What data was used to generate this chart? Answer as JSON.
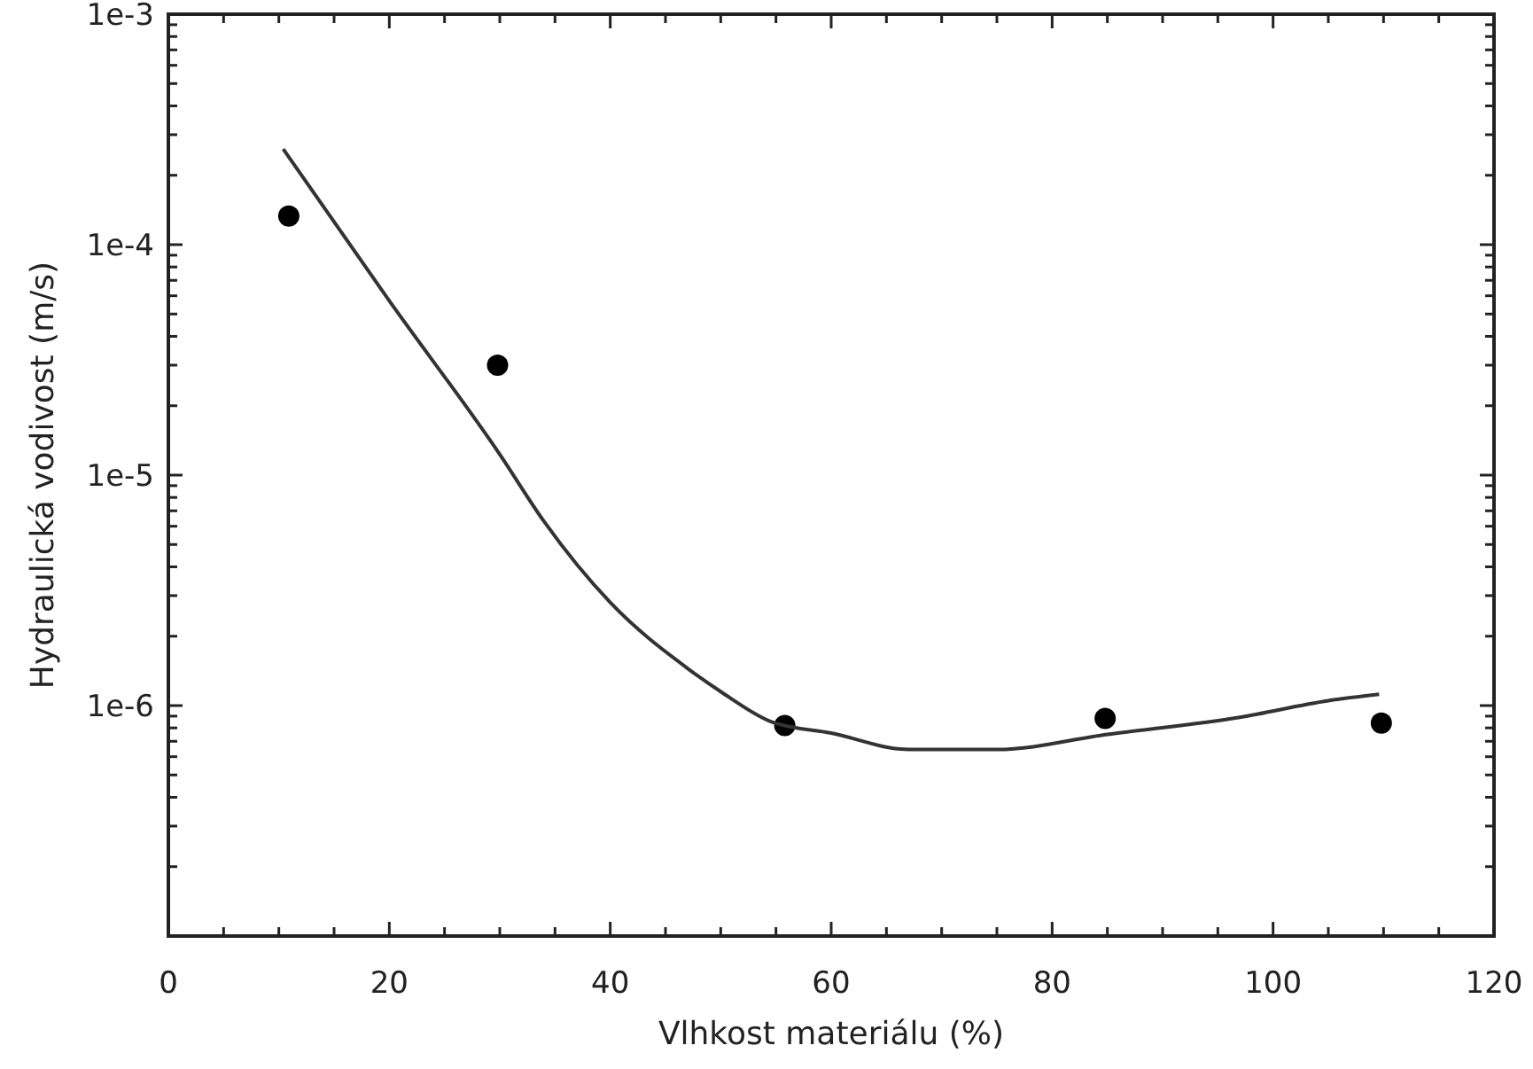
{
  "chart_data": {
    "type": "scatter",
    "xlabel": "Vlhkost materiálu (%)",
    "ylabel": "Hydraulická vodivost (m/s)",
    "log": "y",
    "grid": false,
    "xlim": [
      0,
      120
    ],
    "xticks": [
      0,
      {
        "value": 5,
        "label": null
      },
      {
        "value": 10,
        "label": null
      },
      {
        "value": 15,
        "label": null
      },
      20,
      {
        "value": 25,
        "label": null
      },
      {
        "value": 30,
        "label": null
      },
      {
        "value": 35,
        "label": null
      },
      40,
      {
        "value": 45,
        "label": null
      },
      {
        "value": 50,
        "label": null
      },
      {
        "value": 55,
        "label": null
      },
      60,
      {
        "value": 65,
        "label": null
      },
      {
        "value": 70,
        "label": null
      },
      {
        "value": 75,
        "label": null
      },
      80,
      {
        "value": 85,
        "label": null
      },
      {
        "value": 90,
        "label": null
      },
      {
        "value": 95,
        "label": null
      },
      100,
      {
        "value": 105,
        "label": null
      },
      {
        "value": 110,
        "label": null
      },
      {
        "value": 115,
        "label": null
      },
      120
    ],
    "ylim": [
      1e-07,
      0.001
    ],
    "yticks": [
      {
        "value": 1e-07,
        "label": null
      },
      {
        "value": 2e-07,
        "label": null
      },
      {
        "value": 3e-07,
        "label": null
      },
      {
        "value": 4e-07,
        "label": null
      },
      {
        "value": 5e-07,
        "label": null
      },
      {
        "value": 6e-07,
        "label": null
      },
      {
        "value": 7e-07,
        "label": null
      },
      {
        "value": 8e-07,
        "label": null
      },
      {
        "value": 9e-07,
        "label": null
      },
      {
        "value": 1e-06,
        "label": "1e-6"
      },
      {
        "value": 2e-06,
        "label": null
      },
      {
        "value": 3e-06,
        "label": null
      },
      {
        "value": 4e-06,
        "label": null
      },
      {
        "value": 5e-06,
        "label": null
      },
      {
        "value": 6e-06,
        "label": null
      },
      {
        "value": 7e-06,
        "label": null
      },
      {
        "value": 8e-06,
        "label": null
      },
      {
        "value": 9e-06,
        "label": null
      },
      {
        "value": 1e-05,
        "label": "1e-5"
      },
      {
        "value": 2e-05,
        "label": null
      },
      {
        "value": 3e-05,
        "label": null
      },
      {
        "value": 4e-05,
        "label": null
      },
      {
        "value": 5e-05,
        "label": null
      },
      {
        "value": 6e-05,
        "label": null
      },
      {
        "value": 7e-05,
        "label": null
      },
      {
        "value": 8e-05,
        "label": null
      },
      {
        "value": 9e-05,
        "label": null
      },
      {
        "value": 0.0001,
        "label": "1e-4"
      },
      {
        "value": 0.0002,
        "label": null
      },
      {
        "value": 0.0003,
        "label": null
      },
      {
        "value": 0.0004,
        "label": null
      },
      {
        "value": 0.0005,
        "label": null
      },
      {
        "value": 0.0006,
        "label": null
      },
      {
        "value": 0.0007,
        "label": null
      },
      {
        "value": 0.0008,
        "label": null
      },
      {
        "value": 0.0009,
        "label": null
      },
      {
        "value": 0.001,
        "label": "1e-3"
      }
    ],
    "series": [
      {
        "marker": "circle",
        "color": "#000000",
        "x": [
          10.9,
          29.8,
          55.8,
          84.8,
          109.8
        ],
        "values": [
          0.000133,
          3e-05,
          8.2e-07,
          8.8e-07,
          8.4e-07
        ]
      },
      {
        "type": "line",
        "marker": "none",
        "line_style": "solid",
        "color": "#333333",
        "x": [
          10.4,
          20,
          30,
          34,
          40,
          47,
          50,
          54.6,
          60,
          67,
          75,
          85,
          97,
          105,
          109.6
        ],
        "values": [
          0.00026,
          5.7e-05,
          1.23e-05,
          6.3e-06,
          2.8e-06,
          1.45e-06,
          1.15e-06,
          8.5e-07,
          7.6e-07,
          6.45e-07,
          6.45e-07,
          7.5e-07,
          8.9e-07,
          1.05e-06,
          1.12e-06
        ]
      }
    ]
  }
}
